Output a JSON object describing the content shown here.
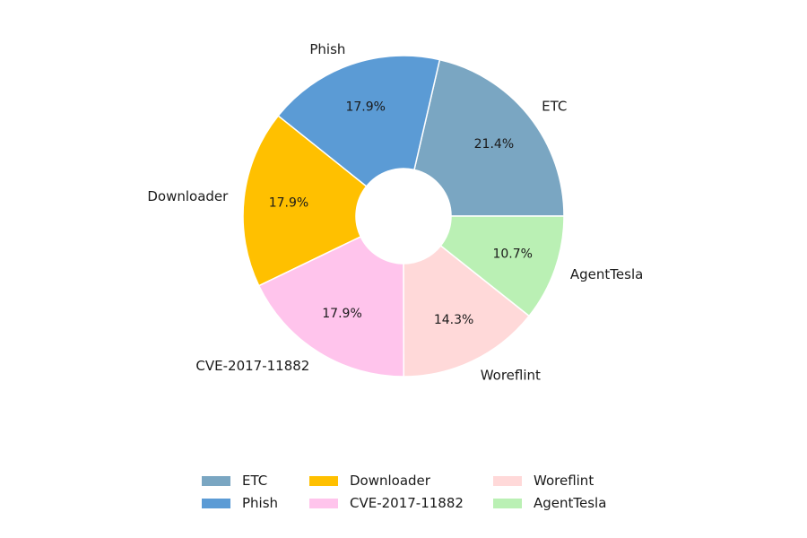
{
  "chart_data": {
    "type": "pie",
    "donut": true,
    "labels": [
      "ETC",
      "Phish",
      "Downloader",
      "CVE-2017-11882",
      "Woreflint",
      "AgentTesla"
    ],
    "values": [
      21.4,
      17.9,
      17.9,
      17.9,
      14.3,
      10.7
    ],
    "percent_labels": [
      "21.4%",
      "17.9%",
      "17.9%",
      "17.9%",
      "14.3%",
      "10.7%"
    ],
    "colors": [
      "#7aa6c2",
      "#5b9bd5",
      "#ffc000",
      "#ffc4ec",
      "#ffd9d9",
      "#baf0b4"
    ],
    "start_angle_deg": 0,
    "direction": "counterclockwise",
    "legend": {
      "placement": "bottom",
      "columns": 3
    }
  }
}
